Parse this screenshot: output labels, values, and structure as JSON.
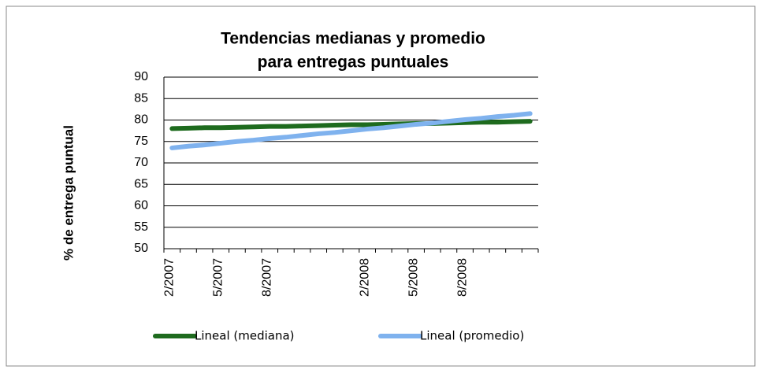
{
  "chart_data": {
    "type": "line",
    "title": [
      "Tendencias medianas y promedio",
      "para entregas puntuales"
    ],
    "y_label": "% de entrega  puntual",
    "categories": [
      "2/2007",
      null,
      null,
      "5/2007",
      null,
      null,
      "8/2007",
      null,
      null,
      null,
      null,
      null,
      "2/2008",
      null,
      null,
      "5/2008",
      null,
      null,
      "8/2008",
      null,
      null,
      null,
      null
    ],
    "series": [
      {
        "name": "Lineal (mediana)",
        "color": "#1e6b1e",
        "values": [
          78.0,
          78.1,
          78.2,
          78.2,
          78.3,
          78.4,
          78.5,
          78.5,
          78.6,
          78.7,
          78.8,
          78.9,
          78.9,
          79.0,
          79.1,
          79.2,
          79.2,
          79.3,
          79.4,
          79.5,
          79.5,
          79.6,
          79.7
        ]
      },
      {
        "name": "Lineal (promedio)",
        "color": "#7fb2ee",
        "values": [
          73.5,
          73.9,
          74.2,
          74.6,
          75.0,
          75.3,
          75.7,
          76.0,
          76.4,
          76.8,
          77.1,
          77.5,
          77.9,
          78.2,
          78.6,
          79.0,
          79.3,
          79.7,
          80.1,
          80.4,
          80.8,
          81.1,
          81.5
        ]
      }
    ],
    "ylim": [
      50,
      90
    ],
    "yticks": [
      50,
      55,
      60,
      65,
      70,
      75,
      80,
      85,
      90
    ],
    "grid": true,
    "legend": "bottom"
  }
}
